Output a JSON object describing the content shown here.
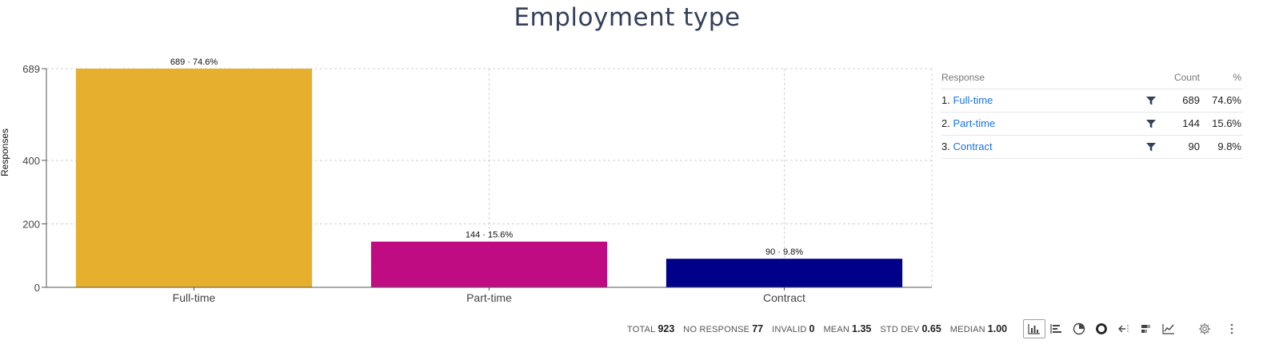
{
  "chart_data": {
    "type": "bar",
    "title": "Employment type",
    "ylabel": "Responses",
    "xlabel": "",
    "categories": [
      "Full-time",
      "Part-time",
      "Contract"
    ],
    "values": [
      689,
      144,
      90
    ],
    "data_labels": [
      "689 · 74.6%",
      "144 · 15.6%",
      "90 · 9.8%"
    ],
    "colors": [
      "#e6b02e",
      "#c00c82",
      "#000088"
    ],
    "ylim": [
      0,
      689
    ],
    "yticks": [
      0,
      200,
      400,
      689
    ],
    "grid": true
  },
  "table": {
    "headers": {
      "response": "Response",
      "count": "Count",
      "pct": "%"
    },
    "rows": [
      {
        "rank": "1.",
        "label": "Full-time",
        "count": "689",
        "pct": "74.6%"
      },
      {
        "rank": "2.",
        "label": "Part-time",
        "count": "144",
        "pct": "15.6%"
      },
      {
        "rank": "3.",
        "label": "Contract",
        "count": "90",
        "pct": "9.8%"
      }
    ]
  },
  "stats": [
    {
      "label": "TOTAL",
      "value": "923"
    },
    {
      "label": "NO RESPONSE",
      "value": "77"
    },
    {
      "label": "INVALID",
      "value": "0"
    },
    {
      "label": "MEAN",
      "value": "1.35"
    },
    {
      "label": "STD DEV",
      "value": "0.65"
    },
    {
      "label": "MEDIAN",
      "value": "1.00"
    }
  ],
  "toolbar": {
    "icons": [
      "bar-chart-icon",
      "horizontal-bar-chart-icon",
      "pie-chart-icon",
      "donut-chart-icon",
      "comparison-icon",
      "stacked-bar-icon",
      "line-chart-icon"
    ],
    "active": "bar-chart-icon"
  }
}
